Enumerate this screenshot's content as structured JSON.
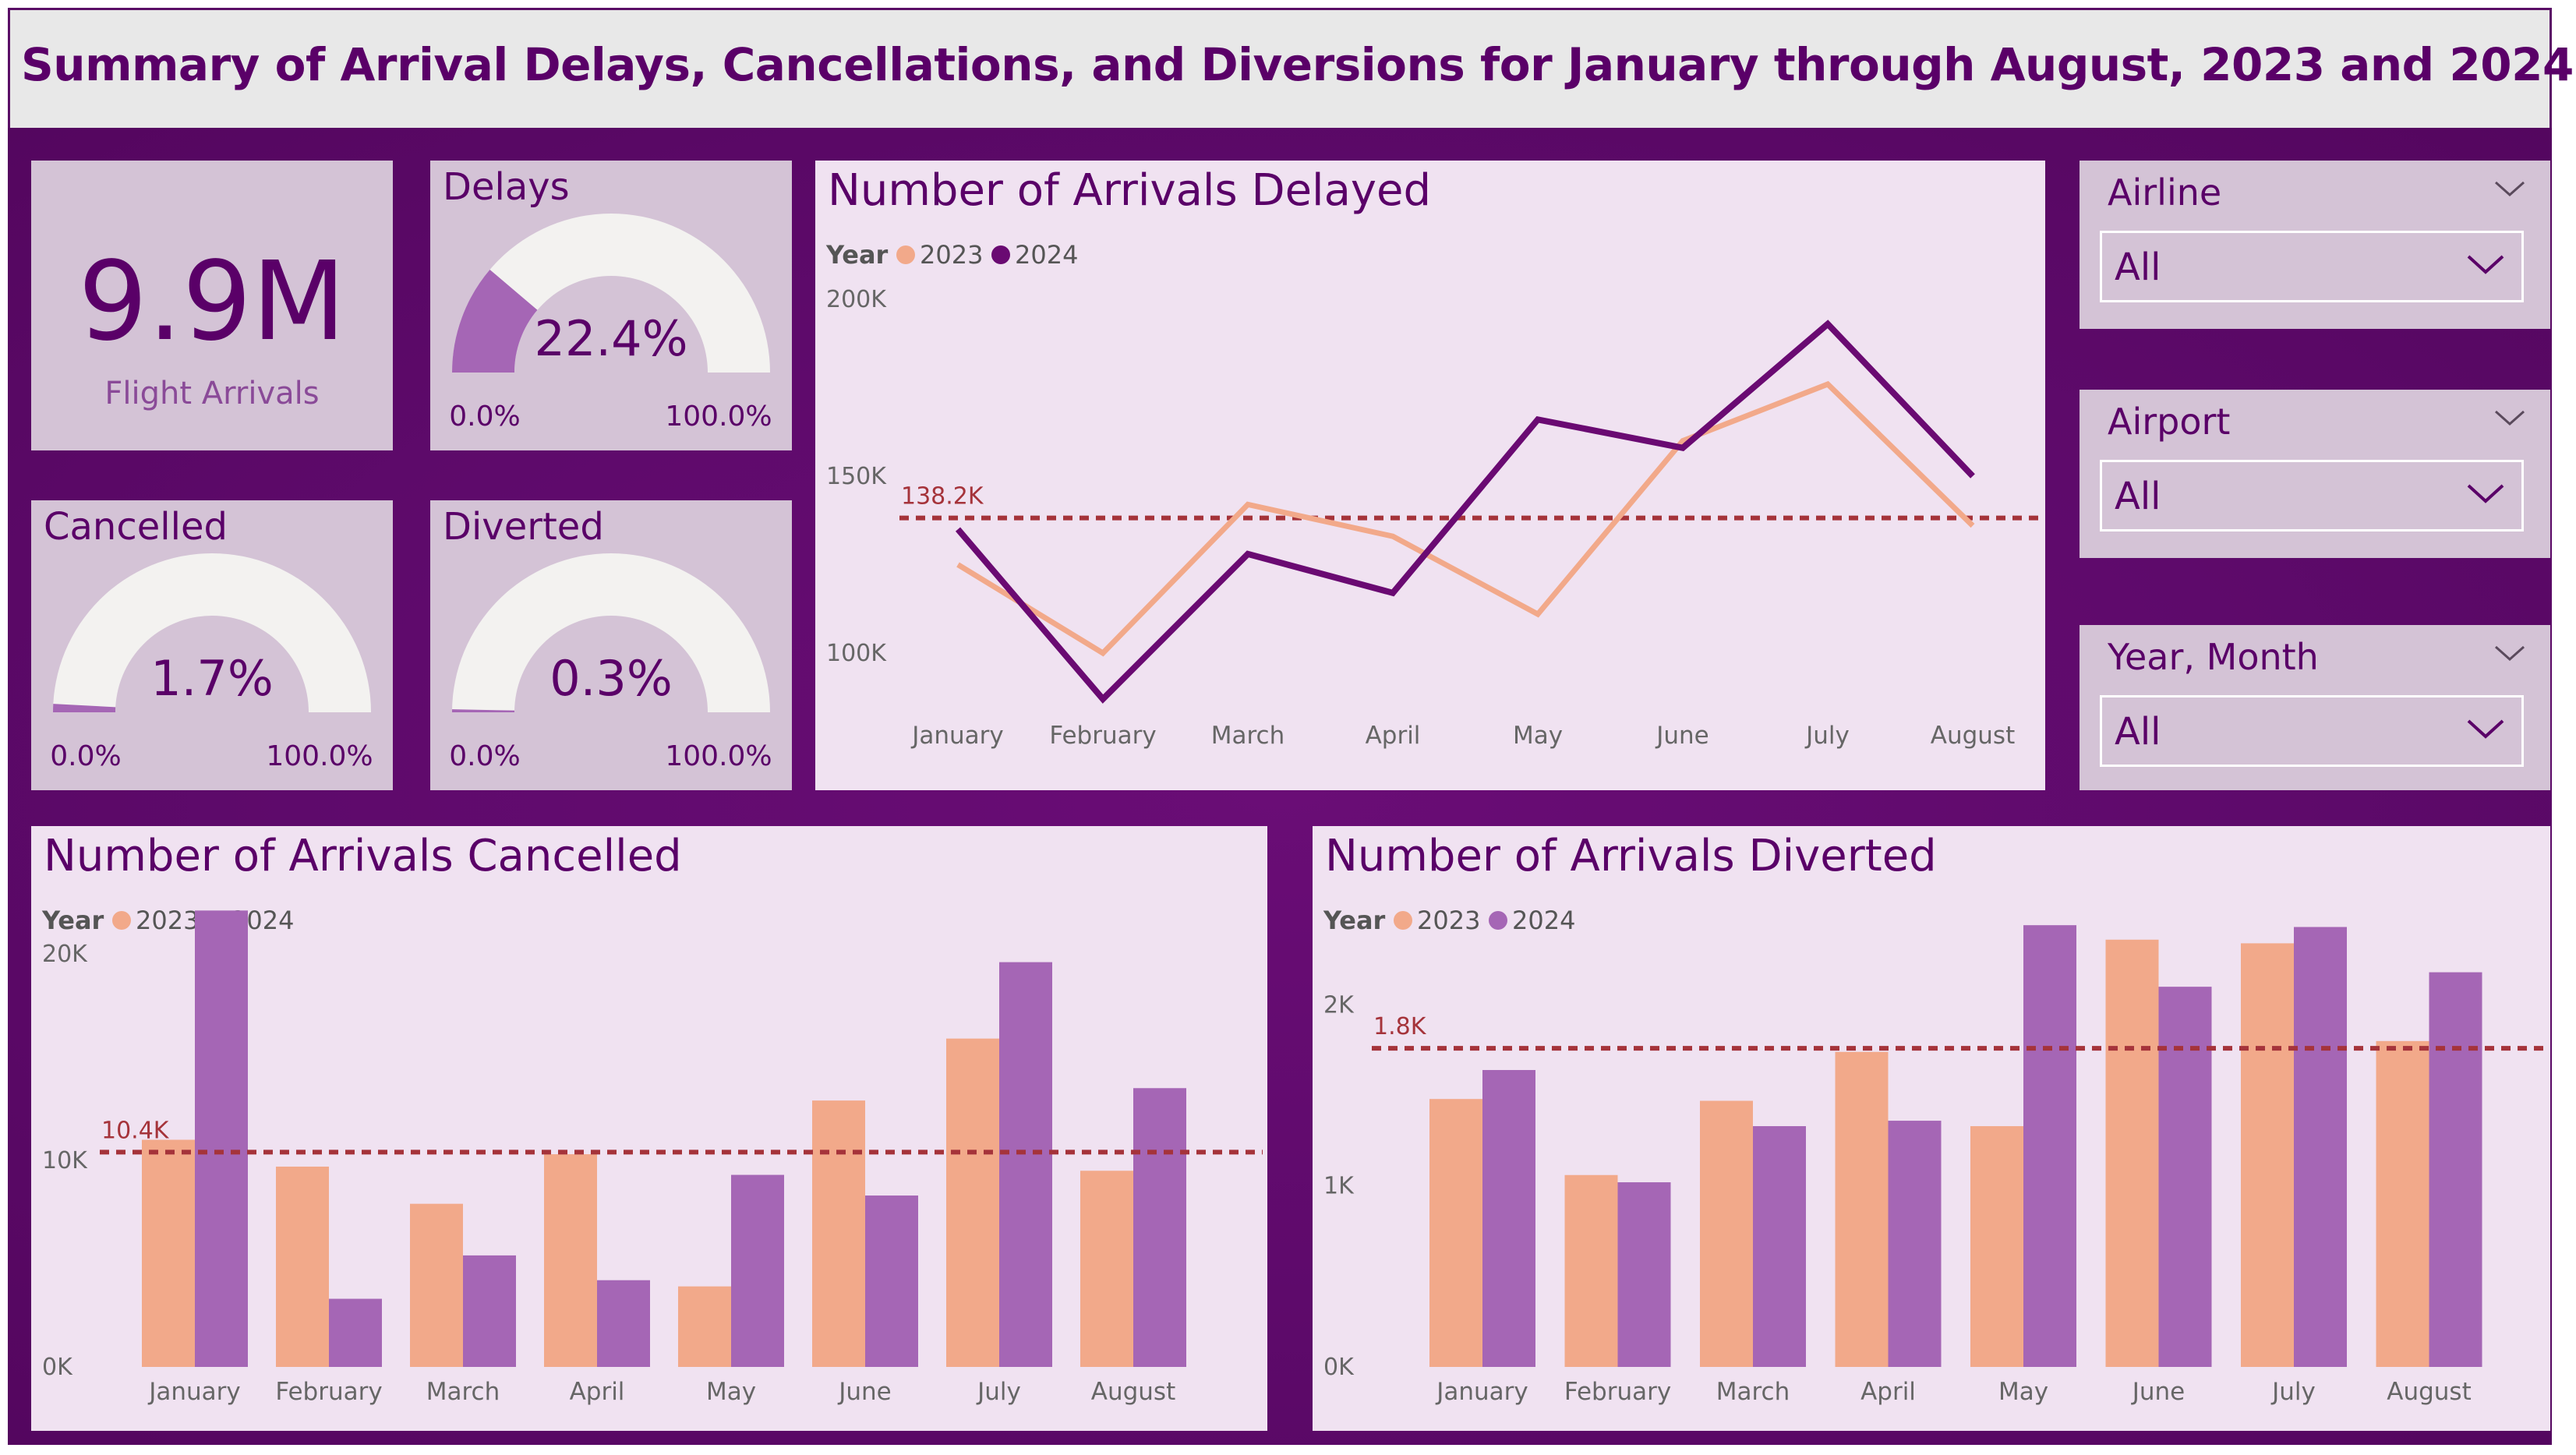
{
  "page": {
    "title": "Summary of Arrival Delays, Cancellations, and Diversions for January through August, 2023 and 2024"
  },
  "kpi": {
    "value": "9.9M",
    "label": "Flight Arrivals"
  },
  "gauges": {
    "delays": {
      "title": "Delays",
      "value_label": "22.4%",
      "value": 0.224,
      "min_label": "0.0%",
      "max_label": "100.0%"
    },
    "cancelled": {
      "title": "Cancelled",
      "value_label": "1.7%",
      "value": 0.017,
      "min_label": "0.0%",
      "max_label": "100.0%"
    },
    "diverted": {
      "title": "Diverted",
      "value_label": "0.3%",
      "value": 0.003,
      "min_label": "0.0%",
      "max_label": "100.0%"
    }
  },
  "slicers": [
    {
      "title": "Airline",
      "value": "All"
    },
    {
      "title": "Airport",
      "value": "All"
    },
    {
      "title": "Year, Month",
      "value": "All"
    }
  ],
  "colors": {
    "series_2023": "#f2a98a",
    "series_2024_line": "#6a0a72",
    "series_2024_bar": "#a566b5",
    "avg_line": "#a5333a",
    "gauge_fill": "#a566b5",
    "gauge_track": "#f3f2f0"
  },
  "chart_data": [
    {
      "type": "line",
      "title": "Number of Arrivals Delayed",
      "legend_title": "Year",
      "categories": [
        "January",
        "February",
        "March",
        "April",
        "May",
        "June",
        "July",
        "August"
      ],
      "series": [
        {
          "name": "2023",
          "values": [
            125000,
            100000,
            142000,
            133000,
            111000,
            160000,
            176000,
            136000
          ]
        },
        {
          "name": "2024",
          "values": [
            135000,
            87000,
            128000,
            117000,
            166000,
            158000,
            193000,
            150000
          ]
        }
      ],
      "y_ticks": [
        "200K",
        "150K",
        "100K"
      ],
      "y_tick_values": [
        200000,
        150000,
        100000
      ],
      "ylim": [
        80000,
        200000
      ],
      "average": {
        "label": "138.2K",
        "value": 138200
      }
    },
    {
      "type": "bar",
      "title": "Number of Arrivals Cancelled",
      "legend_title": "Year",
      "categories": [
        "January",
        "February",
        "March",
        "April",
        "May",
        "June",
        "July",
        "August"
      ],
      "series": [
        {
          "name": "2023",
          "values": [
            11000,
            9700,
            7900,
            10300,
            3900,
            12900,
            15900,
            9500
          ]
        },
        {
          "name": "2024",
          "values": [
            22100,
            3300,
            5400,
            4200,
            9300,
            8300,
            19600,
            13500
          ]
        }
      ],
      "y_ticks": [
        "20K",
        "10K",
        "0K"
      ],
      "y_tick_values": [
        20000,
        10000,
        0
      ],
      "ylim": [
        0,
        24000
      ],
      "average": {
        "label": "10.4K",
        "value": 10400
      }
    },
    {
      "type": "bar",
      "title": "Number of Arrivals Diverted",
      "legend_title": "Year",
      "categories": [
        "January",
        "February",
        "March",
        "April",
        "May",
        "June",
        "July",
        "August"
      ],
      "series": [
        {
          "name": "2023",
          "values": [
            1480,
            1060,
            1470,
            1740,
            1330,
            2360,
            2340,
            1800
          ]
        },
        {
          "name": "2024",
          "values": [
            1640,
            1020,
            1330,
            1360,
            2440,
            2100,
            2430,
            2180
          ]
        }
      ],
      "y_ticks": [
        "2K",
        "1K",
        "0K"
      ],
      "y_tick_values": [
        2000,
        1000,
        0
      ],
      "ylim": [
        0,
        2600
      ],
      "average": {
        "label": "1.8K",
        "value": 1760
      }
    }
  ]
}
